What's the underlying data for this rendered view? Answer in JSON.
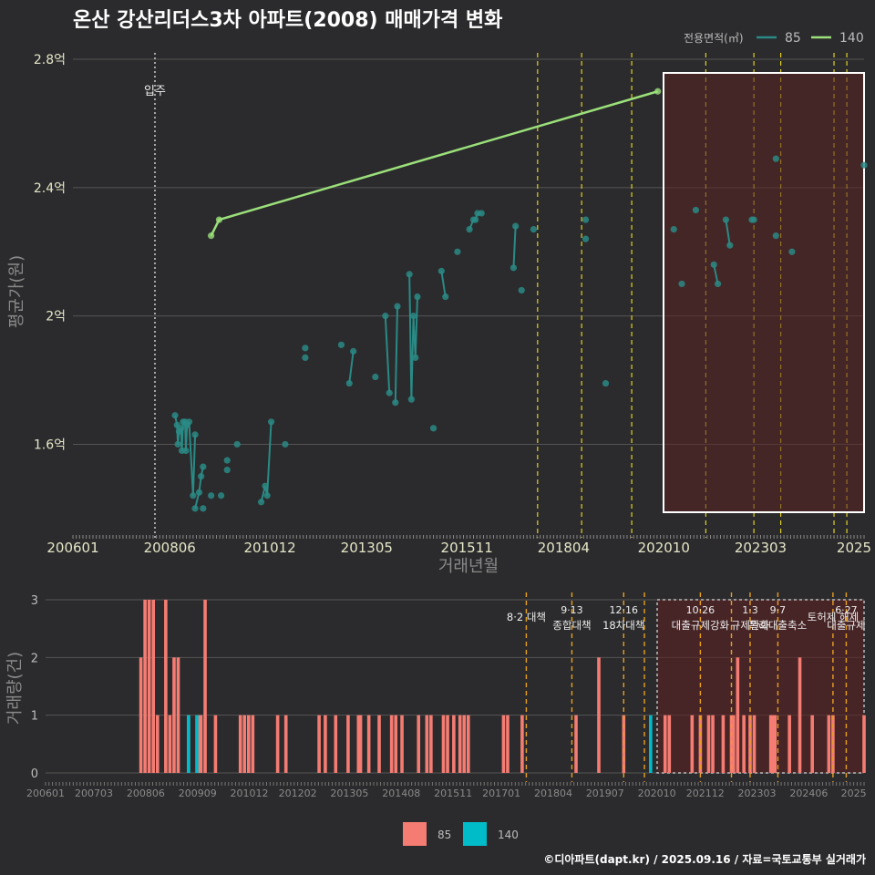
{
  "title": "온산 강산리더스3차 아파트(2008) 매매가격 변화",
  "credit": "©디아파트(dapt.kr) / 2025.09.16 / 자료=국토교통부 실거래가",
  "colors": {
    "bg": "#2b2b2d",
    "grid": "#555555",
    "s85": "#2a8a85",
    "s140": "#9be07a",
    "bar85": "#f47c72",
    "bar140": "#00bcc8",
    "policy": "#e0d020",
    "policyBar": "#e8a020",
    "shade": "#5a2222"
  },
  "chart_data": [
    {
      "type": "line",
      "title": "온산 강산리더스3차 아파트(2008) 매매가격 변화",
      "xlabel": "거래년월",
      "ylabel": "평균가(원)",
      "x_ticks": [
        "200601",
        "200806",
        "201012",
        "201305",
        "201511",
        "201804",
        "202010",
        "202303",
        "2025"
      ],
      "y_ticks": [
        1.6,
        2.0,
        2.4,
        2.8
      ],
      "y_tick_labels": [
        "1.6억",
        "2억",
        "2.4억",
        "2.8억"
      ],
      "ylim": [
        1.32,
        2.82
      ],
      "xlim": [
        2006.0,
        2025.75
      ],
      "legend_title": "전용면적(㎡)",
      "legend": [
        "85",
        "140"
      ],
      "move_in_label": "입주",
      "move_in_x": 2007.95,
      "shaded_range": [
        2020.83,
        2025.75
      ],
      "policy_lines": [
        2017.6,
        2018.7,
        2019.95,
        2021.8,
        2023.0,
        2023.67,
        2025.0,
        2025.32
      ],
      "series": [
        {
          "name": "85",
          "points": [
            [
              2008.55,
              1.69
            ],
            [
              2008.6,
              1.66
            ],
            [
              2008.65,
              1.64
            ],
            [
              2008.7,
              1.65
            ],
            [
              2008.75,
              1.67
            ],
            [
              2008.8,
              1.67
            ],
            [
              2008.85,
              1.66
            ],
            [
              2008.9,
              1.67
            ],
            [
              2009.05,
              1.63
            ],
            [
              2008.62,
              1.6
            ],
            [
              2008.72,
              1.58
            ],
            [
              2008.82,
              1.58
            ],
            [
              2009.0,
              1.44
            ],
            [
              2009.05,
              1.4
            ],
            [
              2009.15,
              1.45
            ],
            [
              2009.2,
              1.5
            ],
            [
              2009.25,
              1.53
            ],
            [
              2009.25,
              1.4
            ],
            [
              2009.45,
              1.44
            ],
            [
              2009.7,
              1.44
            ],
            [
              2009.85,
              1.55
            ],
            [
              2009.85,
              1.52
            ],
            [
              2010.1,
              1.6
            ],
            [
              2010.7,
              1.42
            ],
            [
              2010.8,
              1.47
            ],
            [
              2010.85,
              1.44
            ],
            [
              2010.95,
              1.67
            ],
            [
              2011.3,
              1.6
            ],
            [
              2011.8,
              1.9
            ],
            [
              2011.8,
              1.87
            ],
            [
              2012.7,
              1.91
            ],
            [
              2012.9,
              1.79
            ],
            [
              2013.0,
              1.89
            ],
            [
              2013.55,
              1.81
            ],
            [
              2013.8,
              2.0
            ],
            [
              2013.9,
              1.76
            ],
            [
              2014.05,
              1.73
            ],
            [
              2014.1,
              2.03
            ],
            [
              2014.4,
              2.13
            ],
            [
              2014.45,
              1.74
            ],
            [
              2014.5,
              2.0
            ],
            [
              2014.55,
              1.87
            ],
            [
              2014.6,
              2.06
            ],
            [
              2015.0,
              1.65
            ],
            [
              2015.2,
              2.14
            ],
            [
              2015.3,
              2.06
            ],
            [
              2015.6,
              2.2
            ],
            [
              2015.9,
              2.27
            ],
            [
              2016.0,
              2.3
            ],
            [
              2016.05,
              2.3
            ],
            [
              2016.1,
              2.32
            ],
            [
              2016.2,
              2.32
            ],
            [
              2017.0,
              2.15
            ],
            [
              2017.05,
              2.28
            ],
            [
              2017.2,
              2.08
            ],
            [
              2017.5,
              2.27
            ],
            [
              2018.8,
              2.3
            ],
            [
              2018.8,
              2.24
            ],
            [
              2019.3,
              1.79
            ],
            [
              2021.0,
              2.27
            ],
            [
              2021.2,
              2.1
            ],
            [
              2021.55,
              2.33
            ],
            [
              2022.0,
              2.16
            ],
            [
              2022.1,
              2.1
            ],
            [
              2022.3,
              2.3
            ],
            [
              2022.4,
              2.22
            ],
            [
              2022.95,
              2.3
            ],
            [
              2023.0,
              2.3
            ],
            [
              2023.55,
              2.49
            ],
            [
              2023.55,
              2.25
            ],
            [
              2023.95,
              2.2
            ],
            [
              2025.75,
              2.47
            ]
          ]
        },
        {
          "name": "140",
          "points": [
            [
              2009.45,
              2.25
            ],
            [
              2009.65,
              2.3
            ],
            [
              2020.6,
              2.7
            ]
          ]
        }
      ]
    },
    {
      "type": "bar",
      "title": "",
      "xlabel": "",
      "ylabel": "거래량(건)",
      "y_ticks": [
        0,
        1,
        2,
        3
      ],
      "ylim": [
        0,
        3
      ],
      "x_ticks": [
        "200601",
        "200703",
        "200806",
        "200909",
        "201012",
        "201202",
        "201305",
        "201408",
        "201511",
        "201701",
        "201804",
        "201907",
        "202010",
        "202112",
        "202303",
        "202406",
        "2025"
      ],
      "legend": [
        "85",
        "140"
      ],
      "shaded_range": [
        2020.83,
        2025.75
      ],
      "policies": [
        {
          "x": 2017.6,
          "date": "",
          "label": "8·2 대책"
        },
        {
          "x": 2018.7,
          "date": "9·13",
          "label": "종합대책"
        },
        {
          "x": 2019.95,
          "date": "12·16",
          "label": "18차대책"
        },
        {
          "x": 2020.45,
          "date": "",
          "label": ""
        },
        {
          "x": 2021.8,
          "date": "10·26",
          "label": "대출규제강화"
        },
        {
          "x": 2022.55,
          "date": "",
          "label": ""
        },
        {
          "x": 2023.0,
          "date": "1·3",
          "label": "규제완화"
        },
        {
          "x": 2023.67,
          "date": "9·7",
          "label": "특례대출축소"
        },
        {
          "x": 2025.0,
          "date": "",
          "label": "토허제 해제"
        },
        {
          "x": 2025.32,
          "date": "6·27",
          "label": "대출규제"
        }
      ],
      "series": [
        {
          "name": "85",
          "bars": [
            [
              2008.3,
              2
            ],
            [
              2008.4,
              3
            ],
            [
              2008.5,
              3
            ],
            [
              2008.6,
              3
            ],
            [
              2008.7,
              1
            ],
            [
              2008.9,
              3
            ],
            [
              2009.0,
              1
            ],
            [
              2009.1,
              2
            ],
            [
              2009.2,
              2
            ],
            [
              2009.45,
              1
            ],
            [
              2009.7,
              1
            ],
            [
              2009.75,
              1
            ],
            [
              2009.85,
              3
            ],
            [
              2010.1,
              1
            ],
            [
              2010.7,
              1
            ],
            [
              2010.8,
              1
            ],
            [
              2010.9,
              1
            ],
            [
              2011.0,
              1
            ],
            [
              2011.6,
              1
            ],
            [
              2011.8,
              1
            ],
            [
              2012.6,
              1
            ],
            [
              2012.75,
              1
            ],
            [
              2013.0,
              1
            ],
            [
              2013.3,
              1
            ],
            [
              2013.55,
              1
            ],
            [
              2013.6,
              1
            ],
            [
              2013.8,
              1
            ],
            [
              2014.05,
              1
            ],
            [
              2014.35,
              1
            ],
            [
              2014.45,
              1
            ],
            [
              2014.6,
              1
            ],
            [
              2015.0,
              1
            ],
            [
              2015.2,
              1
            ],
            [
              2015.3,
              1
            ],
            [
              2015.6,
              1
            ],
            [
              2015.7,
              1
            ],
            [
              2015.85,
              1
            ],
            [
              2016.0,
              1
            ],
            [
              2016.1,
              1
            ],
            [
              2016.2,
              1
            ],
            [
              2017.05,
              1
            ],
            [
              2017.15,
              1
            ],
            [
              2017.5,
              1
            ],
            [
              2018.8,
              1
            ],
            [
              2019.35,
              2
            ],
            [
              2019.95,
              1
            ],
            [
              2020.95,
              1
            ],
            [
              2021.05,
              1
            ],
            [
              2021.6,
              1
            ],
            [
              2021.8,
              1
            ],
            [
              2022.0,
              1
            ],
            [
              2022.1,
              1
            ],
            [
              2022.35,
              1
            ],
            [
              2022.55,
              1
            ],
            [
              2022.6,
              1
            ],
            [
              2022.7,
              2
            ],
            [
              2022.85,
              1
            ],
            [
              2023.0,
              1
            ],
            [
              2023.1,
              1
            ],
            [
              2023.5,
              1
            ],
            [
              2023.55,
              1
            ],
            [
              2023.6,
              1
            ],
            [
              2023.95,
              1
            ],
            [
              2024.2,
              2
            ],
            [
              2024.5,
              1
            ],
            [
              2024.9,
              1
            ],
            [
              2025.0,
              1
            ],
            [
              2025.75,
              1
            ]
          ]
        },
        {
          "name": "140",
          "bars": [
            [
              2009.45,
              1
            ],
            [
              2009.65,
              1
            ],
            [
              2020.6,
              1
            ]
          ]
        }
      ]
    }
  ]
}
